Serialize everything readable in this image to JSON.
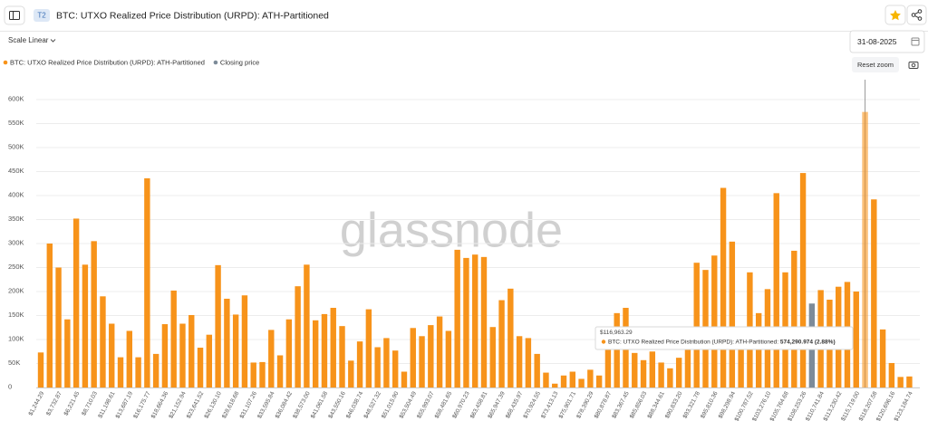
{
  "ui": {
    "badge": "T2",
    "scale": "Scale Linear",
    "date": "31-08-2025",
    "reset_zoom": "Reset zoom",
    "watermark": "glassnode"
  },
  "chart_data": {
    "type": "bar",
    "title": "BTC: UTXO Realized Price Distribution (URPD): ATH-Partitioned",
    "categories": [
      "$1,244.29",
      null,
      "$3,732.87",
      null,
      "$6,221.45",
      null,
      "$8,710.03",
      null,
      "$11,198.61",
      null,
      "$13,687.19",
      null,
      "$16,175.77",
      null,
      "$18,664.36",
      null,
      "$21,152.94",
      null,
      "$23,641.52",
      null,
      "$26,130.10",
      null,
      "$28,618.68",
      null,
      "$31,107.26",
      null,
      "$33,595.84",
      null,
      "$36,084.42",
      null,
      "$38,573.00",
      null,
      "$41,061.58",
      null,
      "$43,550.16",
      null,
      "$46,038.74",
      null,
      "$48,527.32",
      null,
      "$51,015.90",
      null,
      "$53,504.49",
      null,
      "$55,993.07",
      null,
      "$58,481.65",
      null,
      "$60,970.23",
      null,
      "$63,458.81",
      null,
      "$65,947.39",
      null,
      "$68,435.97",
      null,
      "$70,924.55",
      null,
      "$73,413.13",
      null,
      "$75,901.71",
      null,
      "$78,390.29",
      null,
      "$80,878.87",
      null,
      "$83,367.45",
      null,
      "$85,856.03",
      null,
      "$88,344.61",
      null,
      "$90,833.20",
      null,
      "$93,321.78",
      null,
      "$95,810.36",
      null,
      "$98,298.94",
      null,
      "$100,787.52",
      null,
      "$103,276.10",
      null,
      "$105,764.68",
      null,
      "$108,253.26",
      null,
      "$110,741.84",
      null,
      "$113,230.42",
      null,
      "$115,719.00",
      null,
      "$118,207.58",
      null,
      "$120,696.16",
      null,
      "$123,184.74"
    ],
    "series": [
      {
        "name": "BTC: UTXO Realized Price Distribution (URPD): ATH-Partitioned",
        "color": "#f7931a",
        "values": [
          73000,
          300000,
          250000,
          142000,
          352000,
          256000,
          305000,
          190000,
          133000,
          63000,
          118000,
          63000,
          436000,
          70000,
          132000,
          202000,
          133000,
          151000,
          83000,
          110000,
          255000,
          185000,
          152000,
          192000,
          52000,
          53000,
          120000,
          67000,
          142000,
          211000,
          256000,
          140000,
          153000,
          166000,
          128000,
          56000,
          96000,
          163000,
          84000,
          103000,
          77000,
          33000,
          124000,
          107000,
          130000,
          148000,
          118000,
          287000,
          270000,
          277000,
          272000,
          126000,
          182000,
          206000,
          107000,
          103000,
          70000,
          31000,
          8000,
          25000,
          33000,
          18000,
          37000,
          25000,
          92000,
          155000,
          166000,
          72000,
          57000,
          75000,
          52000,
          40000,
          62000,
          90000,
          260000,
          245000,
          275000,
          416000,
          304000,
          80000,
          240000,
          155000,
          205000,
          405000,
          240000,
          285000,
          447000,
          null,
          203000,
          183000,
          210000,
          220000,
          200000,
          574290.974,
          392000,
          121000,
          51000,
          22000,
          23000
        ]
      },
      {
        "name": "Closing price",
        "color": "#7d8b99",
        "values": [
          null,
          null,
          null,
          null,
          null,
          null,
          null,
          null,
          null,
          null,
          null,
          null,
          null,
          null,
          null,
          null,
          null,
          null,
          null,
          null,
          null,
          null,
          null,
          null,
          null,
          null,
          null,
          null,
          null,
          null,
          null,
          null,
          null,
          null,
          null,
          null,
          null,
          null,
          null,
          null,
          null,
          null,
          null,
          null,
          null,
          null,
          null,
          null,
          null,
          null,
          null,
          null,
          null,
          null,
          null,
          null,
          null,
          null,
          null,
          null,
          null,
          null,
          null,
          null,
          null,
          null,
          null,
          null,
          null,
          null,
          null,
          null,
          null,
          null,
          null,
          null,
          null,
          null,
          null,
          null,
          null,
          null,
          null,
          null,
          null,
          null,
          null,
          175000,
          null,
          null,
          null,
          null,
          null,
          null,
          null,
          null,
          null,
          null,
          null
        ]
      }
    ],
    "ylim": [
      0,
      600000
    ],
    "yticks": [
      0,
      {
        "value": 50000,
        "label": "50K"
      },
      {
        "value": 100000,
        "label": "100K"
      },
      {
        "value": 150000,
        "label": "150K"
      },
      {
        "value": 200000,
        "label": "200K"
      },
      {
        "value": 250000,
        "label": "250K"
      },
      {
        "value": 300000,
        "label": "300K"
      },
      {
        "value": 350000,
        "label": "350K"
      },
      {
        "value": 400000,
        "label": "400K"
      },
      {
        "value": 450000,
        "label": "450K"
      },
      {
        "value": 500000,
        "label": "500K"
      },
      {
        "value": 550000,
        "label": "550K"
      },
      {
        "value": 600000,
        "label": "600K"
      }
    ],
    "grid": true,
    "tooltip": {
      "title": "$116,963.29",
      "series_label": "BTC: UTXO Realized Price Distribution (URPD): ATH-Partitioned:",
      "value": "574,290.974 (2.88%)"
    }
  }
}
